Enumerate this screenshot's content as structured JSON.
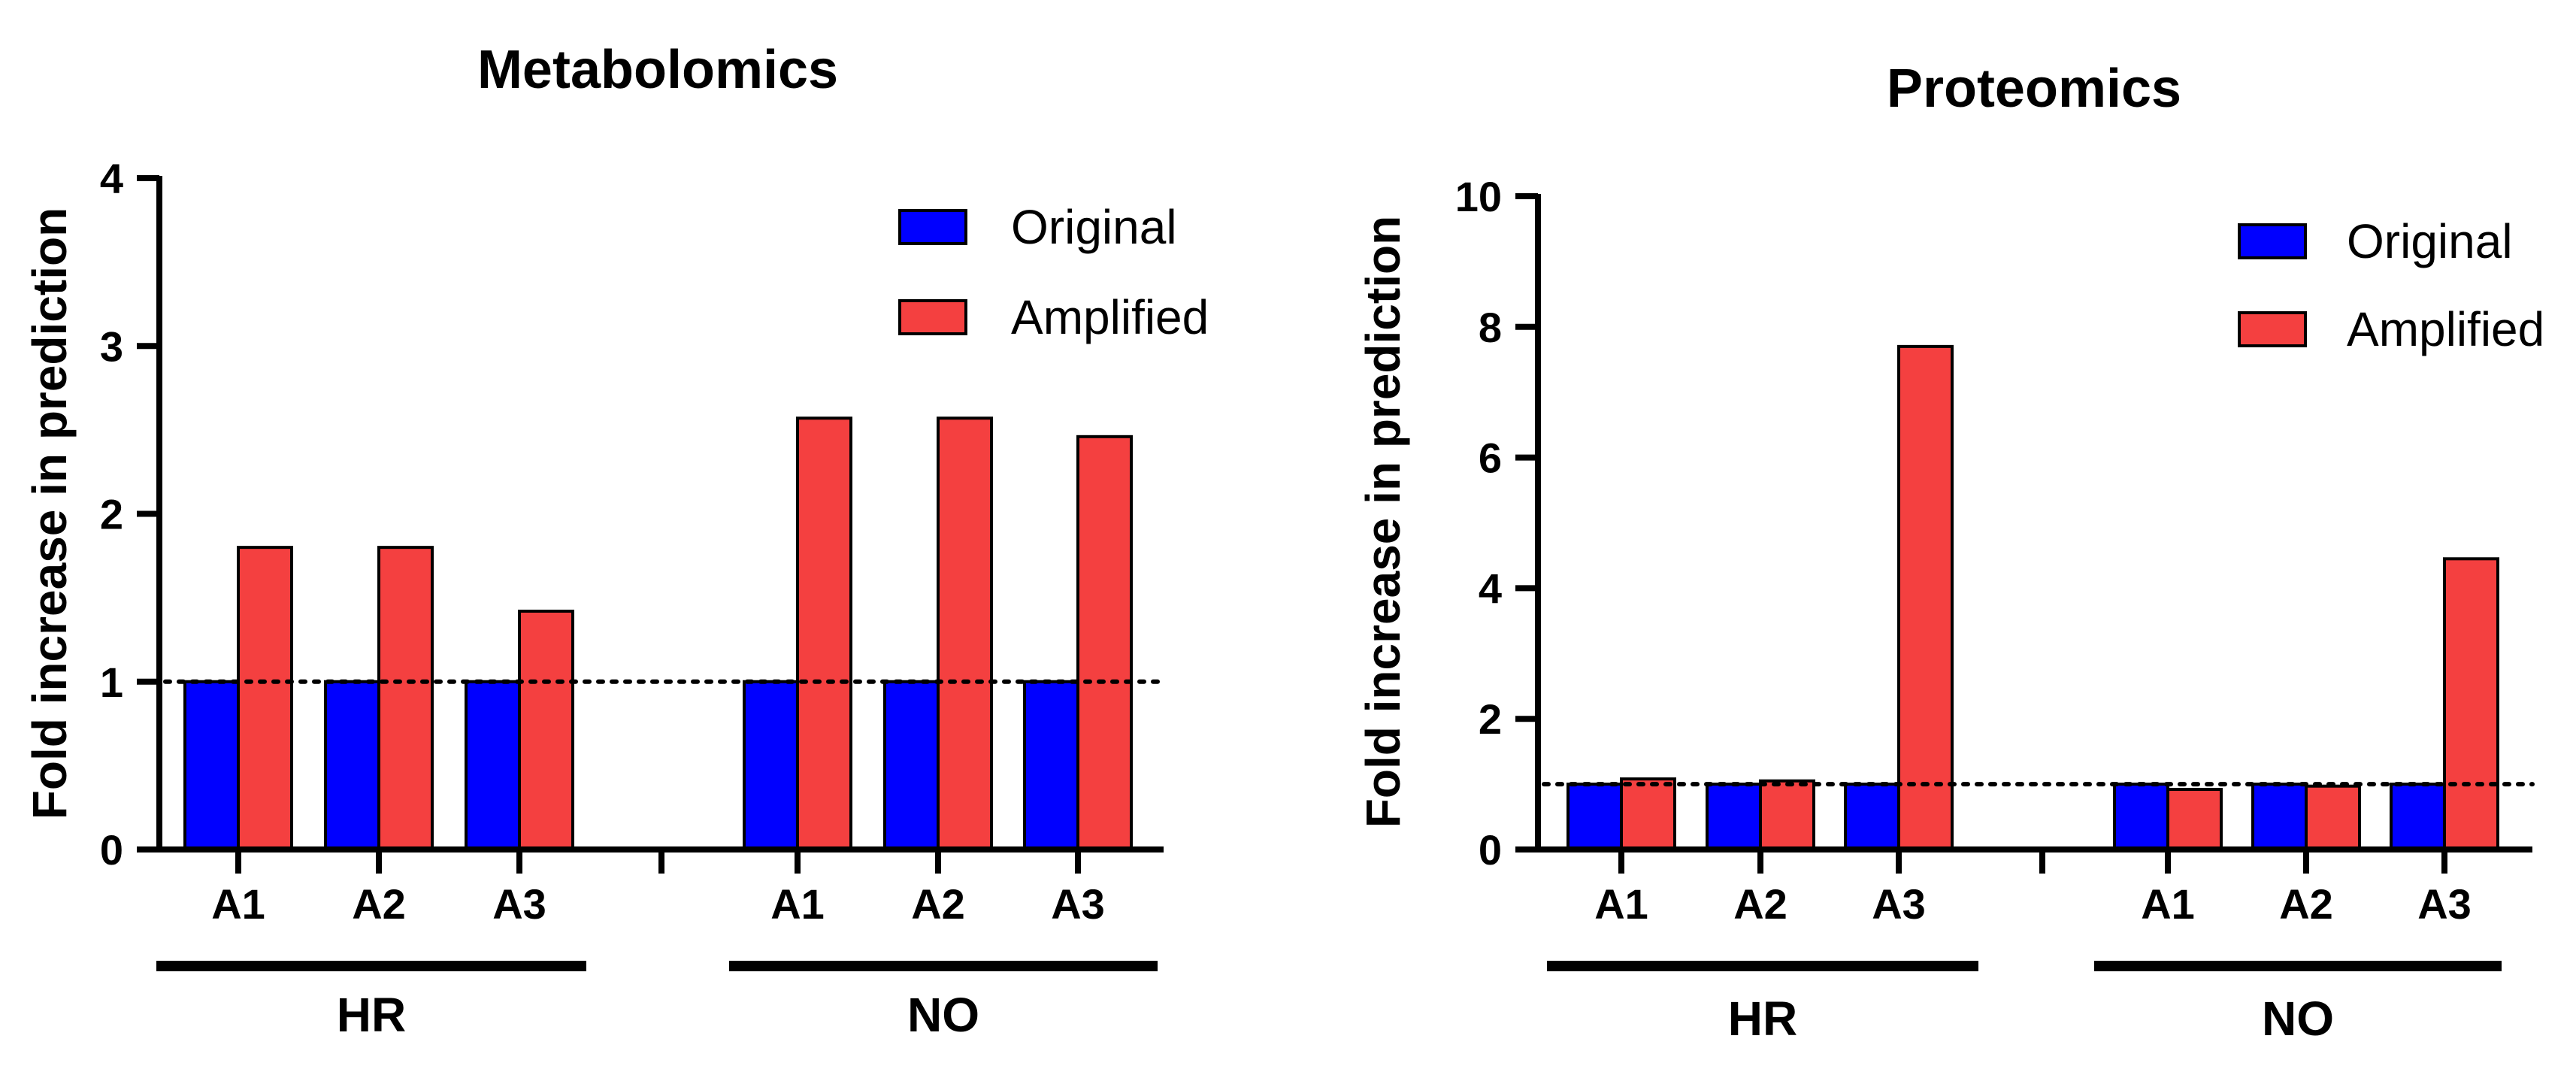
{
  "chart_data": [
    {
      "type": "bar",
      "title": "Metabolomics",
      "ylabel": "Fold increase in prediction",
      "xlabel": "",
      "ylim": [
        0,
        4
      ],
      "yticks": [
        "0",
        "1",
        "2",
        "3",
        "4"
      ],
      "reference_line": 1,
      "groups": [
        {
          "name": "HR",
          "categories": [
            "A1",
            "A2",
            "A3"
          ]
        },
        {
          "name": "NO",
          "categories": [
            "A1",
            "A2",
            "A3"
          ]
        }
      ],
      "series": [
        {
          "name": "Original",
          "values": [
            1,
            1,
            1,
            1,
            1,
            1
          ]
        },
        {
          "name": "Amplified",
          "values": [
            1.8,
            1.8,
            1.42,
            2.57,
            2.57,
            2.46
          ]
        }
      ],
      "legend_position": "top-right"
    },
    {
      "type": "bar",
      "title": "Proteomics",
      "ylabel": "Fold increase in prediction",
      "xlabel": "",
      "ylim": [
        0,
        10
      ],
      "yticks": [
        "0",
        "2",
        "4",
        "6",
        "8",
        "10"
      ],
      "reference_line": 1,
      "groups": [
        {
          "name": "HR",
          "categories": [
            "A1",
            "A2",
            "A3"
          ]
        },
        {
          "name": "NO",
          "categories": [
            "A1",
            "A2",
            "A3"
          ]
        }
      ],
      "series": [
        {
          "name": "Original",
          "values": [
            1,
            1,
            1,
            1,
            1,
            1
          ]
        },
        {
          "name": "Amplified",
          "values": [
            1.08,
            1.05,
            7.7,
            0.92,
            0.97,
            4.45
          ]
        }
      ],
      "legend_position": "top-right"
    }
  ],
  "colors": {
    "Original": "#0000ff",
    "Amplified": "#f44040",
    "axis": "#000000"
  }
}
